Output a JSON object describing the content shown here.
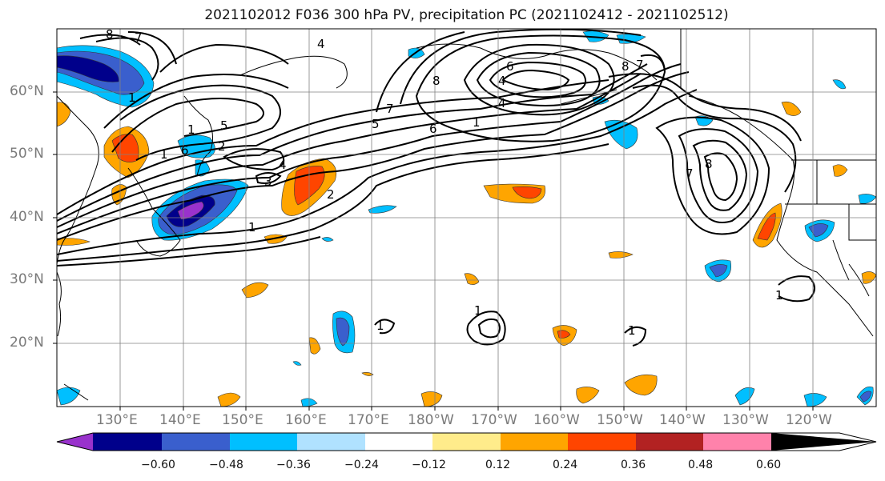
{
  "title": "2021102012 F036 300 hPa PV, precipitation PC (2021102412 - 2021102512)",
  "lat_labels": [
    "60°N",
    "50°N",
    "40°N",
    "30°N",
    "20°N"
  ],
  "lon_labels": [
    "130°E",
    "140°E",
    "150°E",
    "160°E",
    "170°E",
    "180°W",
    "170°W",
    "160°W",
    "150°W",
    "140°W",
    "130°W",
    "120°W"
  ],
  "colorbar": {
    "colors": [
      "#9932cc",
      "#00008b",
      "#3a5fcd",
      "#00bfff",
      "#b0e2ff",
      "#ffffff",
      "#ffec8b",
      "#ffa500",
      "#ff4500",
      "#b22222",
      "#ff82ab"
    ],
    "ticks": [
      "−0.60",
      "−0.48",
      "−0.36",
      "−0.24",
      "−0.12",
      "0.12",
      "0.24",
      "0.36",
      "0.48",
      "0.60"
    ]
  },
  "contour_labels": [
    "8",
    "7",
    "1",
    "5",
    "4",
    "3",
    "8",
    "6",
    "7",
    "5",
    "6",
    "1",
    "4",
    "7",
    "8",
    "7",
    "6",
    "2",
    "1",
    "4",
    "8",
    "2",
    "1",
    "4",
    "1",
    "1",
    "1",
    "1",
    "1"
  ]
}
